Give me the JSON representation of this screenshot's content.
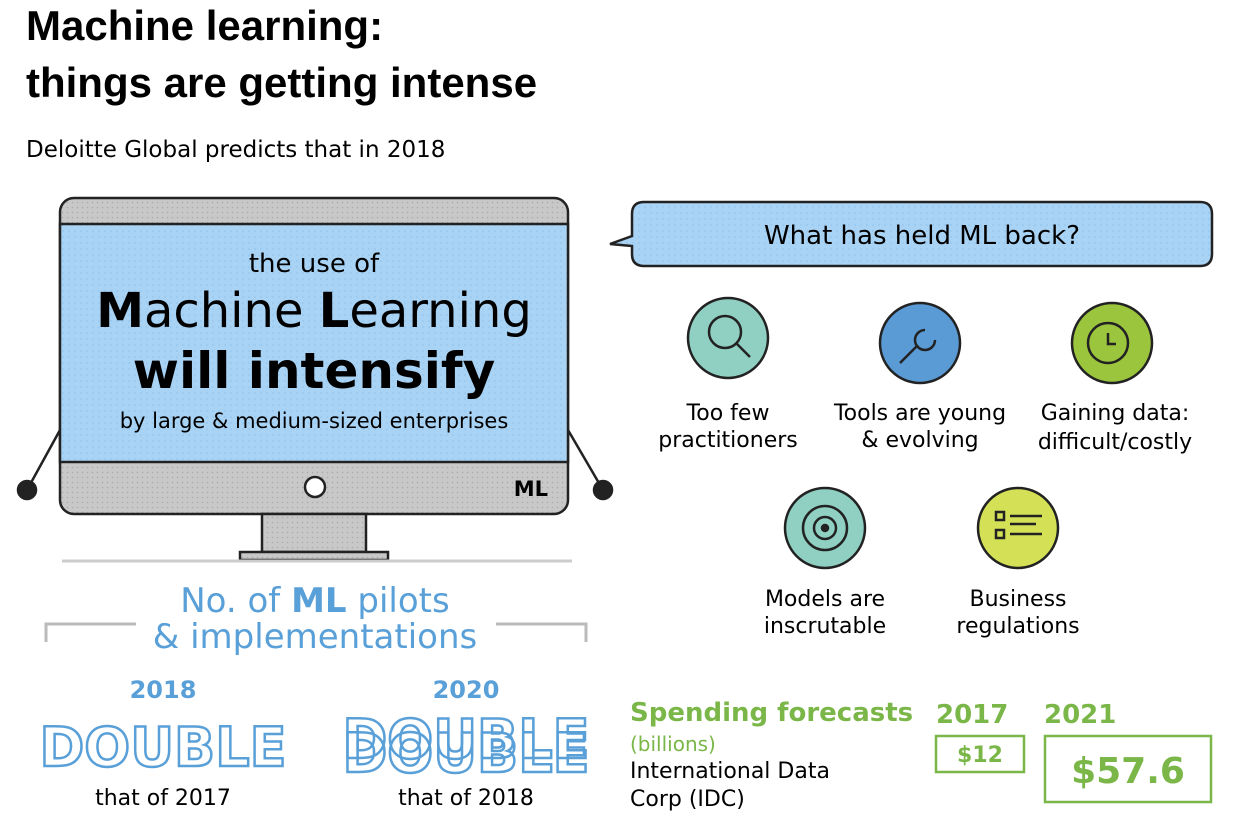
{
  "header": {
    "title": [
      "Machine learning:",
      "things are getting intense"
    ],
    "subtitle": "Deloitte Global predicts that in 2018"
  },
  "monitor": {
    "intro": "the use of",
    "headline": [
      "M",
      "achine ",
      "L",
      "earning"
    ],
    "emphasis": "will intensify",
    "detail": "by large & medium-sized enterprises",
    "badge": "ML"
  },
  "pilots": {
    "title": [
      "No. of ",
      "ML",
      " pilots"
    ],
    "title_line2": "& implementations",
    "items": [
      {
        "year": "2018",
        "label": "DOUBLE",
        "note": "that of 2017"
      },
      {
        "year": "2020",
        "label": "DOUBLE",
        "note": "that of 2018"
      }
    ]
  },
  "barriers": {
    "question": "What has held ML back?",
    "items": [
      {
        "label": [
          "Too few",
          "practitioners"
        ]
      },
      {
        "label": [
          "Tools are young",
          "& evolving"
        ]
      },
      {
        "label": [
          "Gaining data:",
          "difficult/costly"
        ]
      },
      {
        "label": [
          "Models are",
          "inscrutable"
        ]
      },
      {
        "label": [
          "Business",
          "regulations"
        ]
      }
    ]
  },
  "spending": {
    "title": "Spending forecasts",
    "unit": "(billions)",
    "source": [
      "International Data",
      "Corp (IDC)"
    ],
    "forecasts": [
      {
        "year": "2017",
        "amount": "$12"
      },
      {
        "year": "2021",
        "amount": "$57.6"
      }
    ]
  }
}
